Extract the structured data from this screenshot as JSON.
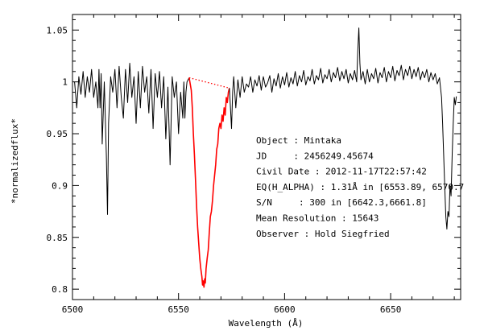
{
  "chart_data": {
    "type": "line",
    "title": "",
    "xlabel": "Wavelength (Å)",
    "ylabel": "*normalizedflux*",
    "xlim": [
      6500,
      6683
    ],
    "ylim": [
      0.79,
      1.065
    ],
    "grid": false,
    "x_ticks": [
      "6500",
      "6550",
      "6600",
      "6650"
    ],
    "x_tick_values": [
      6500,
      6550,
      6600,
      6650
    ],
    "y_ticks": [
      "0.8",
      "0.85",
      "0.9",
      "0.95",
      "1",
      "1.05"
    ],
    "y_tick_values": [
      0.8,
      0.85,
      0.9,
      0.95,
      1.0,
      1.05
    ],
    "series": [
      {
        "color": "#000000",
        "x": [
          6501,
          6502,
          6503,
          6504,
          6505,
          6506,
          6507,
          6508,
          6509,
          6510,
          6511,
          6512,
          6512.5,
          6513,
          6513.5,
          6514,
          6515,
          6516,
          6516.5,
          6517,
          6518,
          6519,
          6520,
          6521,
          6522,
          6523,
          6524,
          6525,
          6526,
          6527,
          6528,
          6529,
          6530,
          6531,
          6532,
          6533,
          6534,
          6535,
          6536,
          6537,
          6538,
          6539,
          6540,
          6541,
          6542,
          6543,
          6544,
          6545,
          6546,
          6547,
          6548,
          6549,
          6550,
          6551,
          6552,
          6552.5,
          6553,
          6553.5,
          6554,
          6555
        ],
        "y": [
          1.0,
          0.975,
          1.005,
          0.988,
          1.01,
          0.985,
          1.005,
          0.99,
          1.012,
          0.985,
          1.0,
          0.975,
          1.012,
          0.975,
          1.008,
          0.94,
          1.0,
          0.928,
          0.872,
          0.96,
          1.005,
          0.99,
          1.012,
          0.975,
          1.015,
          0.985,
          0.965,
          1.012,
          0.98,
          1.018,
          0.985,
          1.005,
          0.96,
          1.01,
          0.975,
          1.015,
          0.99,
          1.005,
          0.97,
          1.012,
          0.955,
          1.008,
          0.985,
          1.01,
          0.975,
          1.005,
          0.945,
          0.995,
          0.92,
          1.005,
          0.985,
          1.0,
          0.95,
          0.99,
          0.965,
          1.0,
          0.965,
          0.99,
          1.0,
          1.004
        ]
      },
      {
        "color": "#ff0000",
        "x": [
          6555,
          6556,
          6556.5,
          6557,
          6557.5,
          6558,
          6558.5,
          6559,
          6559.5,
          6560,
          6560.5,
          6561,
          6561.3,
          6561.6,
          6562,
          6562.3,
          6562.6,
          6563,
          6563.5,
          6564,
          6564.5,
          6565,
          6565.5,
          6566,
          6566.5,
          6567,
          6567.5,
          6568,
          6568.5,
          6569,
          6569.5,
          6570,
          6570.5,
          6571,
          6571.5,
          6572,
          6572.5,
          6573,
          6573.5,
          6574
        ],
        "y": [
          1.004,
          0.992,
          0.975,
          0.95,
          0.93,
          0.905,
          0.88,
          0.86,
          0.845,
          0.83,
          0.82,
          0.812,
          0.804,
          0.808,
          0.802,
          0.81,
          0.806,
          0.82,
          0.83,
          0.838,
          0.855,
          0.87,
          0.875,
          0.885,
          0.9,
          0.91,
          0.92,
          0.935,
          0.94,
          0.955,
          0.96,
          0.955,
          0.968,
          0.962,
          0.975,
          0.968,
          0.985,
          0.98,
          0.99,
          0.994
        ]
      },
      {
        "color": "#ff0000",
        "style": "dotted",
        "x": [
          6555,
          6574
        ],
        "y": [
          1.004,
          0.994
        ]
      },
      {
        "color": "#000000",
        "x": [
          6574,
          6575,
          6575.5,
          6576,
          6577,
          6578,
          6579,
          6580,
          6581,
          6582,
          6583,
          6584,
          6585,
          6586,
          6587,
          6588,
          6589,
          6590,
          6591,
          6592,
          6593,
          6594,
          6595,
          6596,
          6597,
          6598,
          6599,
          6600,
          6601,
          6602,
          6603,
          6604,
          6605,
          6606,
          6607,
          6608,
          6609,
          6610,
          6611,
          6612,
          6613,
          6614,
          6615,
          6616,
          6617,
          6618,
          6619,
          6620,
          6621,
          6622,
          6623,
          6624,
          6625,
          6626,
          6627,
          6628,
          6629,
          6630,
          6631,
          6632,
          6633,
          6634,
          6634.5,
          6635,
          6635.5,
          6636,
          6637,
          6638,
          6639,
          6640,
          6641,
          6642,
          6643,
          6644,
          6645,
          6646,
          6647,
          6648,
          6649,
          6650,
          6651,
          6652,
          6653,
          6654,
          6655,
          6656,
          6657,
          6658,
          6659,
          6660,
          6661,
          6662,
          6663,
          6664,
          6665,
          6666,
          6667,
          6668,
          6669,
          6670,
          6671,
          6672,
          6673,
          6674,
          6674.5,
          6675,
          6675.5,
          6676,
          6676.5,
          6677,
          6677.5,
          6678,
          6678.5,
          6679,
          6679.5,
          6680,
          6680.5,
          6681
        ],
        "y": [
          0.994,
          0.955,
          0.99,
          1.005,
          0.975,
          1.002,
          0.985,
          1.005,
          0.99,
          0.998,
          0.995,
          1.005,
          0.99,
          1.002,
          0.996,
          1.006,
          0.992,
          1.005,
          0.995,
          0.999,
          1.006,
          0.99,
          1.003,
          0.996,
          1.008,
          0.994,
          1.005,
          0.997,
          1.009,
          0.995,
          1.004,
          0.998,
          1.01,
          0.996,
          1.006,
          1.0,
          1.011,
          0.997,
          1.005,
          1.001,
          1.012,
          0.998,
          1.006,
          1.002,
          1.013,
          0.999,
          1.007,
          1.003,
          1.012,
          1.0,
          1.009,
          1.004,
          1.014,
          1.001,
          1.01,
          1.003,
          1.012,
          0.999,
          1.008,
          1.002,
          1.011,
          1.0,
          1.03,
          1.052,
          1.018,
          1.002,
          1.01,
          0.998,
          1.012,
          1.0,
          1.008,
          1.003,
          1.013,
          0.999,
          1.009,
          1.004,
          1.014,
          1.0,
          1.01,
          1.004,
          1.015,
          1.001,
          1.011,
          1.006,
          1.016,
          1.002,
          1.012,
          1.006,
          1.015,
          1.003,
          1.012,
          1.005,
          1.014,
          1.002,
          1.01,
          1.004,
          1.012,
          1.0,
          1.009,
          1.002,
          1.008,
          0.998,
          1.004,
          0.985,
          0.96,
          0.93,
          0.9,
          0.87,
          0.858,
          0.875,
          0.87,
          0.9,
          0.89,
          0.93,
          0.96,
          0.985,
          0.978,
          0.986
        ]
      }
    ]
  },
  "annotations": [
    "Object : Mintaka",
    "JD     : 2456249.45674",
    "Civil Date : 2012-11-17T22:57:42",
    "EQ(H_ALPHA) : 1.31Å in [6553.89, 6570.7",
    "S/N     : 300 in [6642.3,6661.8]",
    "Mean Resolution : 15643",
    "Observer : Hold Siegfried"
  ]
}
